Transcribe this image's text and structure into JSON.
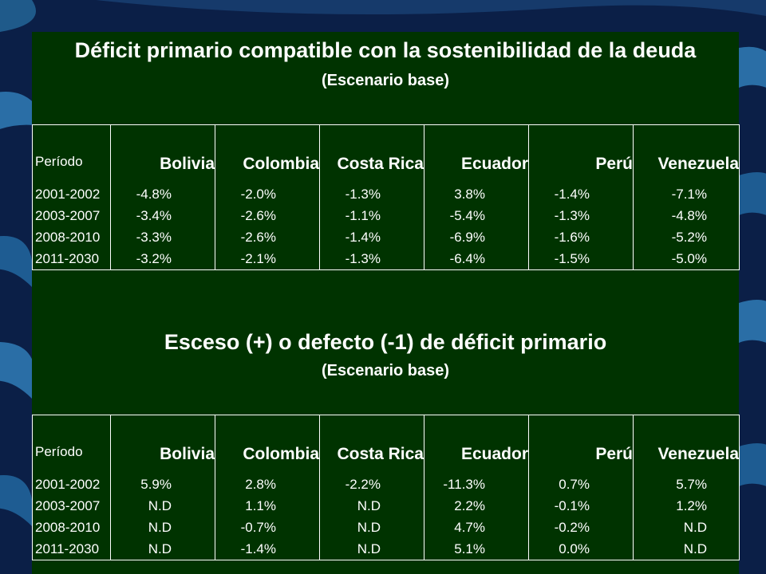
{
  "section1": {
    "title": "Déficit primario compatible con la sostenibilidad de la deuda",
    "subtitle": "(Escenario base)",
    "header": [
      "Período",
      "Bolivia",
      "Colombia",
      "Costa Rica",
      "Ecuador",
      "Perú",
      "Venezuela"
    ],
    "rows": [
      [
        "2001-2002",
        "-4.8%",
        "-2.0%",
        "-1.3%",
        "3.8%",
        "-1.4%",
        "-7.1%"
      ],
      [
        "2003-2007",
        "-3.4%",
        "-2.6%",
        "-1.1%",
        "-5.4%",
        "-1.3%",
        "-4.8%"
      ],
      [
        "2008-2010",
        "-3.3%",
        "-2.6%",
        "-1.4%",
        "-6.9%",
        "-1.6%",
        "-5.2%"
      ],
      [
        "2011-2030",
        "-3.2%",
        "-2.1%",
        "-1.3%",
        "-6.4%",
        "-1.5%",
        "-5.0%"
      ]
    ]
  },
  "section2": {
    "title": "Esceso (+) o defecto (-1) de déficit primario",
    "subtitle": "(Escenario base)",
    "header": [
      "Período",
      "Bolivia",
      "Colombia",
      "Costa Rica",
      "Ecuador",
      "Perú",
      "Venezuela"
    ],
    "rows": [
      [
        "2001-2002",
        "5.9%",
        "2.8%",
        "-2.2%",
        "-11.3%",
        "0.7%",
        "5.7%"
      ],
      [
        "2003-2007",
        "N.D",
        "1.1%",
        "N.D",
        "2.2%",
        "-0.1%",
        "1.2%"
      ],
      [
        "2008-2010",
        "N.D",
        "-0.7%",
        "N.D",
        "4.7%",
        "-0.2%",
        "N.D"
      ],
      [
        "2011-2030",
        "N.D",
        "-1.4%",
        "N.D",
        "5.1%",
        "0.0%",
        "N.D"
      ]
    ]
  },
  "colors": {
    "panel": "#003300",
    "background": "#0a1a3a",
    "text": "#ffffff"
  }
}
